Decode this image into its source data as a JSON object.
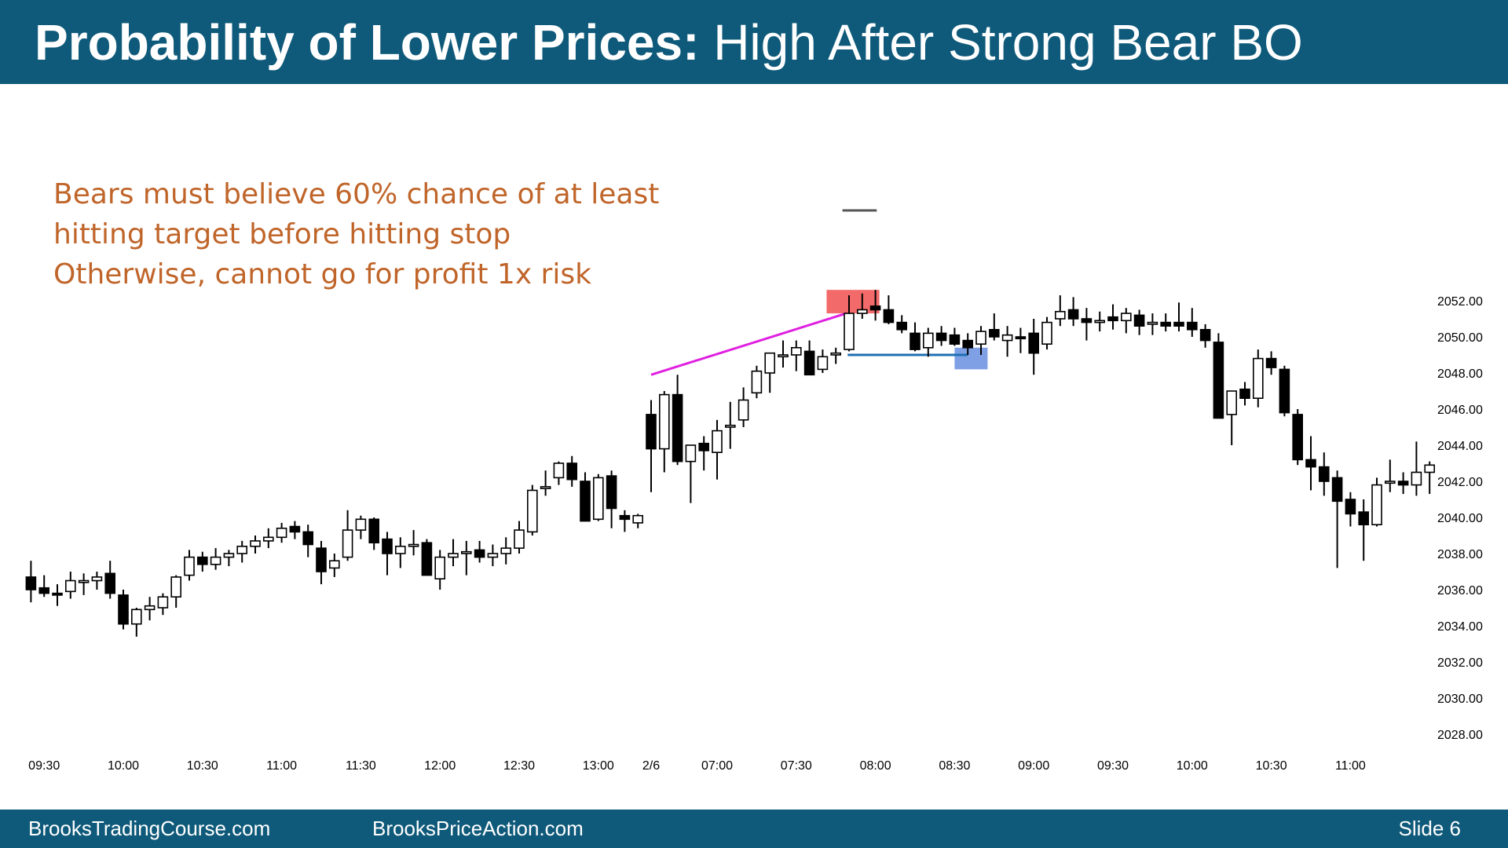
{
  "header": {
    "title_bold": "Probability of Lower Prices:",
    "title_rest": "High After Strong Bear BO"
  },
  "notes": [
    "Bears must believe 60% chance of at least",
    "hitting target before hitting stop",
    "Otherwise, cannot go for profit 1x risk"
  ],
  "footer": {
    "left": "BrooksTradingCourse.com",
    "middle": "BrooksPriceAction.com",
    "slide": "Slide  6"
  },
  "colors": {
    "header_bg": "#0f5a7a",
    "note_text": "#c0652a",
    "bear_candle": "#000000",
    "bull_candle": "#ffffff",
    "trendline": "#e020e0",
    "entry_line": "#1f6fb4",
    "high_box": "#f05050",
    "target_box": "#6a8fe0"
  },
  "chart_data": {
    "type": "candlestick",
    "y_ticks": [
      "2052.00",
      "2050.00",
      "2048.00",
      "2046.00",
      "2044.00",
      "2042.00",
      "2040.00",
      "2038.00",
      "2036.00",
      "2034.00",
      "2032.00",
      "2030.00",
      "2028.00"
    ],
    "ylim": [
      2027.5,
      2053.2
    ],
    "x_tick_labels": [
      {
        "label": "09:30",
        "bar": 1.5
      },
      {
        "label": "10:00",
        "bar": 7.5
      },
      {
        "label": "10:30",
        "bar": 13.5
      },
      {
        "label": "11:00",
        "bar": 19.5
      },
      {
        "label": "11:30",
        "bar": 25.5
      },
      {
        "label": "12:00",
        "bar": 31.5
      },
      {
        "label": "12:30",
        "bar": 37.5
      },
      {
        "label": "13:00",
        "bar": 43.5
      },
      {
        "label": "2/6",
        "bar": 47.5
      },
      {
        "label": "07:00",
        "bar": 52.5
      },
      {
        "label": "07:30",
        "bar": 58.5
      },
      {
        "label": "08:00",
        "bar": 64.5
      },
      {
        "label": "08:30",
        "bar": 70.5
      },
      {
        "label": "09:00",
        "bar": 76.5
      },
      {
        "label": "09:30",
        "bar": 82.5
      },
      {
        "label": "10:00",
        "bar": 88.5
      },
      {
        "label": "10:30",
        "bar": 94.5
      },
      {
        "label": "11:00",
        "bar": 100.5
      }
    ],
    "bar_count": 107,
    "candles": [
      {
        "o": 2036.7,
        "h": 2037.6,
        "l": 2035.3,
        "c": 2036.0
      },
      {
        "o": 2036.1,
        "h": 2036.8,
        "l": 2035.6,
        "c": 2035.8
      },
      {
        "o": 2035.8,
        "h": 2036.3,
        "l": 2035.1,
        "c": 2035.7
      },
      {
        "o": 2035.9,
        "h": 2037.0,
        "l": 2035.5,
        "c": 2036.5
      },
      {
        "o": 2036.4,
        "h": 2036.9,
        "l": 2035.7,
        "c": 2036.5
      },
      {
        "o": 2036.5,
        "h": 2037.0,
        "l": 2036.0,
        "c": 2036.7
      },
      {
        "o": 2036.9,
        "h": 2037.6,
        "l": 2035.5,
        "c": 2035.8
      },
      {
        "o": 2035.7,
        "h": 2036.0,
        "l": 2033.8,
        "c": 2034.1
      },
      {
        "o": 2034.1,
        "h": 2035.0,
        "l": 2033.4,
        "c": 2034.9
      },
      {
        "o": 2034.9,
        "h": 2035.6,
        "l": 2034.3,
        "c": 2035.1
      },
      {
        "o": 2035.0,
        "h": 2035.8,
        "l": 2034.6,
        "c": 2035.6
      },
      {
        "o": 2035.6,
        "h": 2036.8,
        "l": 2035.0,
        "c": 2036.7
      },
      {
        "o": 2036.8,
        "h": 2038.2,
        "l": 2036.5,
        "c": 2037.8
      },
      {
        "o": 2037.8,
        "h": 2038.1,
        "l": 2037.0,
        "c": 2037.4
      },
      {
        "o": 2037.4,
        "h": 2038.3,
        "l": 2037.1,
        "c": 2037.8
      },
      {
        "o": 2037.8,
        "h": 2038.2,
        "l": 2037.3,
        "c": 2038.0
      },
      {
        "o": 2038.0,
        "h": 2038.7,
        "l": 2037.5,
        "c": 2038.4
      },
      {
        "o": 2038.4,
        "h": 2039.0,
        "l": 2038.0,
        "c": 2038.7
      },
      {
        "o": 2038.7,
        "h": 2039.4,
        "l": 2038.3,
        "c": 2038.9
      },
      {
        "o": 2038.9,
        "h": 2039.7,
        "l": 2038.6,
        "c": 2039.4
      },
      {
        "o": 2039.5,
        "h": 2039.8,
        "l": 2038.8,
        "c": 2039.2
      },
      {
        "o": 2039.2,
        "h": 2039.6,
        "l": 2037.8,
        "c": 2038.5
      },
      {
        "o": 2038.3,
        "h": 2038.7,
        "l": 2036.3,
        "c": 2037.0
      },
      {
        "o": 2037.2,
        "h": 2038.0,
        "l": 2036.7,
        "c": 2037.6
      },
      {
        "o": 2037.8,
        "h": 2040.4,
        "l": 2037.6,
        "c": 2039.3
      },
      {
        "o": 2039.3,
        "h": 2040.1,
        "l": 2038.8,
        "c": 2039.9
      },
      {
        "o": 2039.9,
        "h": 2040.0,
        "l": 2038.2,
        "c": 2038.6
      },
      {
        "o": 2038.8,
        "h": 2039.2,
        "l": 2036.8,
        "c": 2038.0
      },
      {
        "o": 2038.0,
        "h": 2038.9,
        "l": 2037.2,
        "c": 2038.4
      },
      {
        "o": 2038.4,
        "h": 2039.3,
        "l": 2037.9,
        "c": 2038.5
      },
      {
        "o": 2038.6,
        "h": 2038.8,
        "l": 2036.8,
        "c": 2036.8
      },
      {
        "o": 2036.6,
        "h": 2038.2,
        "l": 2036.0,
        "c": 2037.8
      },
      {
        "o": 2037.8,
        "h": 2038.8,
        "l": 2037.3,
        "c": 2038.0
      },
      {
        "o": 2038.0,
        "h": 2038.7,
        "l": 2036.8,
        "c": 2038.1
      },
      {
        "o": 2038.2,
        "h": 2038.7,
        "l": 2037.5,
        "c": 2037.8
      },
      {
        "o": 2037.8,
        "h": 2038.5,
        "l": 2037.3,
        "c": 2038.0
      },
      {
        "o": 2038.0,
        "h": 2038.9,
        "l": 2037.4,
        "c": 2038.3
      },
      {
        "o": 2038.3,
        "h": 2039.8,
        "l": 2038.0,
        "c": 2039.3
      },
      {
        "o": 2039.2,
        "h": 2041.8,
        "l": 2039.0,
        "c": 2041.5
      },
      {
        "o": 2041.6,
        "h": 2042.6,
        "l": 2041.2,
        "c": 2041.7
      },
      {
        "o": 2042.2,
        "h": 2043.1,
        "l": 2041.8,
        "c": 2043.0
      },
      {
        "o": 2043.0,
        "h": 2043.4,
        "l": 2041.7,
        "c": 2042.1
      },
      {
        "o": 2042.0,
        "h": 2042.5,
        "l": 2039.8,
        "c": 2039.8
      },
      {
        "o": 2039.9,
        "h": 2042.4,
        "l": 2039.8,
        "c": 2042.2
      },
      {
        "o": 2042.3,
        "h": 2042.6,
        "l": 2039.4,
        "c": 2040.5
      },
      {
        "o": 2040.1,
        "h": 2040.4,
        "l": 2039.2,
        "c": 2039.9
      },
      {
        "o": 2039.7,
        "h": 2040.2,
        "l": 2039.4,
        "c": 2040.1
      },
      {
        "o": 2045.7,
        "h": 2046.5,
        "l": 2041.4,
        "c": 2043.8
      },
      {
        "o": 2043.8,
        "h": 2047.0,
        "l": 2042.5,
        "c": 2046.8
      },
      {
        "o": 2046.8,
        "h": 2047.9,
        "l": 2042.9,
        "c": 2043.1
      },
      {
        "o": 2043.1,
        "h": 2043.9,
        "l": 2040.8,
        "c": 2044.0
      },
      {
        "o": 2044.1,
        "h": 2044.5,
        "l": 2042.6,
        "c": 2043.7
      },
      {
        "o": 2043.6,
        "h": 2045.4,
        "l": 2042.1,
        "c": 2044.8
      },
      {
        "o": 2045.0,
        "h": 2046.4,
        "l": 2043.8,
        "c": 2045.1
      },
      {
        "o": 2045.4,
        "h": 2047.2,
        "l": 2045.0,
        "c": 2046.5
      },
      {
        "o": 2046.9,
        "h": 2048.4,
        "l": 2046.6,
        "c": 2048.1
      },
      {
        "o": 2048.0,
        "h": 2049.1,
        "l": 2046.9,
        "c": 2049.1
      },
      {
        "o": 2048.9,
        "h": 2049.8,
        "l": 2048.3,
        "c": 2049.0
      },
      {
        "o": 2049.0,
        "h": 2049.8,
        "l": 2048.1,
        "c": 2049.4
      },
      {
        "o": 2049.2,
        "h": 2049.8,
        "l": 2048.0,
        "c": 2047.9
      },
      {
        "o": 2048.2,
        "h": 2049.3,
        "l": 2048.0,
        "c": 2048.9
      },
      {
        "o": 2049.0,
        "h": 2049.4,
        "l": 2048.5,
        "c": 2049.1
      },
      {
        "o": 2049.3,
        "h": 2052.3,
        "l": 2049.2,
        "c": 2051.3
      },
      {
        "o": 2051.3,
        "h": 2052.4,
        "l": 2051.0,
        "c": 2051.5
      },
      {
        "o": 2051.7,
        "h": 2052.6,
        "l": 2050.9,
        "c": 2051.5
      },
      {
        "o": 2051.5,
        "h": 2052.3,
        "l": 2050.7,
        "c": 2050.8
      },
      {
        "o": 2050.8,
        "h": 2051.2,
        "l": 2050.2,
        "c": 2050.4
      },
      {
        "o": 2050.2,
        "h": 2050.8,
        "l": 2049.2,
        "c": 2049.3
      },
      {
        "o": 2049.4,
        "h": 2050.5,
        "l": 2048.9,
        "c": 2050.2
      },
      {
        "o": 2050.2,
        "h": 2050.6,
        "l": 2049.5,
        "c": 2049.8
      },
      {
        "o": 2050.1,
        "h": 2050.5,
        "l": 2049.5,
        "c": 2049.6
      },
      {
        "o": 2049.8,
        "h": 2050.2,
        "l": 2049.0,
        "c": 2049.4
      },
      {
        "o": 2049.6,
        "h": 2050.6,
        "l": 2049.0,
        "c": 2050.3
      },
      {
        "o": 2050.4,
        "h": 2051.3,
        "l": 2049.8,
        "c": 2050.0
      },
      {
        "o": 2049.8,
        "h": 2050.6,
        "l": 2048.9,
        "c": 2050.1
      },
      {
        "o": 2050.0,
        "h": 2050.5,
        "l": 2049.1,
        "c": 2049.9
      },
      {
        "o": 2050.2,
        "h": 2051.0,
        "l": 2047.9,
        "c": 2049.1
      },
      {
        "o": 2049.6,
        "h": 2051.1,
        "l": 2049.3,
        "c": 2050.8
      },
      {
        "o": 2051.0,
        "h": 2052.3,
        "l": 2050.6,
        "c": 2051.4
      },
      {
        "o": 2051.5,
        "h": 2052.2,
        "l": 2050.6,
        "c": 2051.0
      },
      {
        "o": 2051.0,
        "h": 2051.6,
        "l": 2049.8,
        "c": 2050.8
      },
      {
        "o": 2050.8,
        "h": 2051.4,
        "l": 2050.3,
        "c": 2050.9
      },
      {
        "o": 2051.1,
        "h": 2051.8,
        "l": 2050.4,
        "c": 2050.9
      },
      {
        "o": 2050.9,
        "h": 2051.6,
        "l": 2050.2,
        "c": 2051.3
      },
      {
        "o": 2051.2,
        "h": 2051.5,
        "l": 2050.1,
        "c": 2050.6
      },
      {
        "o": 2050.7,
        "h": 2051.3,
        "l": 2050.1,
        "c": 2050.8
      },
      {
        "o": 2050.8,
        "h": 2051.3,
        "l": 2050.3,
        "c": 2050.6
      },
      {
        "o": 2050.8,
        "h": 2051.9,
        "l": 2050.3,
        "c": 2050.6
      },
      {
        "o": 2050.8,
        "h": 2051.6,
        "l": 2050.0,
        "c": 2050.4
      },
      {
        "o": 2050.4,
        "h": 2050.7,
        "l": 2049.4,
        "c": 2049.8
      },
      {
        "o": 2049.7,
        "h": 2050.2,
        "l": 2045.5,
        "c": 2045.5
      },
      {
        "o": 2045.7,
        "h": 2047.0,
        "l": 2044.0,
        "c": 2047.0
      },
      {
        "o": 2047.1,
        "h": 2047.5,
        "l": 2046.2,
        "c": 2046.6
      },
      {
        "o": 2046.6,
        "h": 2049.3,
        "l": 2046.1,
        "c": 2048.8
      },
      {
        "o": 2048.8,
        "h": 2049.2,
        "l": 2047.9,
        "c": 2048.3
      },
      {
        "o": 2048.2,
        "h": 2048.4,
        "l": 2045.6,
        "c": 2045.8
      },
      {
        "o": 2045.7,
        "h": 2046.0,
        "l": 2042.9,
        "c": 2043.2
      },
      {
        "o": 2043.2,
        "h": 2044.5,
        "l": 2041.5,
        "c": 2042.8
      },
      {
        "o": 2042.8,
        "h": 2043.6,
        "l": 2041.2,
        "c": 2042.0
      },
      {
        "o": 2042.2,
        "h": 2042.6,
        "l": 2037.2,
        "c": 2040.9
      },
      {
        "o": 2041.0,
        "h": 2041.4,
        "l": 2039.5,
        "c": 2040.2
      },
      {
        "o": 2040.3,
        "h": 2041.0,
        "l": 2037.6,
        "c": 2039.6
      },
      {
        "o": 2039.6,
        "h": 2042.2,
        "l": 2039.5,
        "c": 2041.8
      },
      {
        "o": 2041.9,
        "h": 2043.2,
        "l": 2041.4,
        "c": 2042.0
      },
      {
        "o": 2042.0,
        "h": 2042.5,
        "l": 2041.3,
        "c": 2041.8
      },
      {
        "o": 2041.8,
        "h": 2044.2,
        "l": 2041.2,
        "c": 2042.5
      },
      {
        "o": 2042.5,
        "h": 2043.1,
        "l": 2041.3,
        "c": 2042.9
      }
    ],
    "annotations": {
      "trendline": {
        "from_bar": 47.5,
        "from_price": 2047.9,
        "to_bar": 62.3,
        "to_price": 2051.3
      },
      "entry_line": {
        "from_bar": 62.4,
        "to_bar": 71.5,
        "price": 2049.0
      },
      "high_box": {
        "bar_start": 60.8,
        "bar_end": 64.8,
        "top": 2052.6,
        "bottom": 2051.3
      },
      "target_box": {
        "bar_start": 70.5,
        "bar_end": 73.0,
        "top": 2049.4,
        "bottom": 2048.2
      },
      "small_dash": {
        "from_bar": 62.0,
        "to_bar": 64.6,
        "price": 2057.0
      }
    }
  }
}
